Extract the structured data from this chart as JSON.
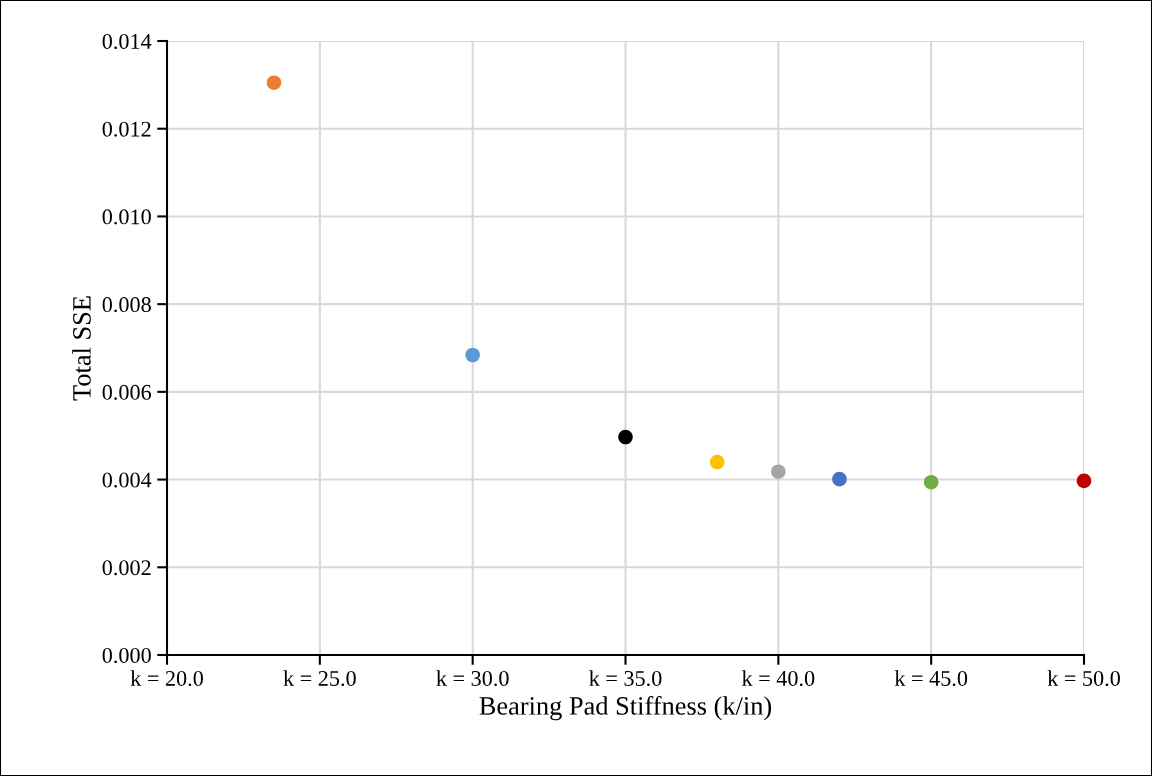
{
  "chart_data": {
    "type": "scatter",
    "xlabel": "Bearing Pad Stiffness (k/in)",
    "ylabel": "Total SSE",
    "x": [
      23.5,
      30,
      35,
      38,
      40,
      42,
      45,
      50
    ],
    "values": [
      0.01305,
      0.00684,
      0.00497,
      0.0044,
      0.00418,
      0.00401,
      0.00394,
      0.00397
    ],
    "colors": [
      "#ed7d31",
      "#5b9bd5",
      "#000000",
      "#ffc000",
      "#a5a5a5",
      "#4472c4",
      "#70ad47",
      "#c00000"
    ],
    "marker": "circle",
    "xlim": [
      20,
      50
    ],
    "xticks": [
      {
        "value": 20,
        "label": "k = 20.0"
      },
      {
        "value": 25,
        "label": "k = 25.0"
      },
      {
        "value": 30,
        "label": "k = 30.0"
      },
      {
        "value": 35,
        "label": "k = 35.0"
      },
      {
        "value": 40,
        "label": "k = 40.0"
      },
      {
        "value": 45,
        "label": "k = 45.0"
      },
      {
        "value": 50,
        "label": "k = 50.0"
      }
    ],
    "ylim": [
      0,
      0.014
    ],
    "yticks": [
      {
        "value": 0,
        "label": "0.000"
      },
      {
        "value": 0.002,
        "label": "0.002"
      },
      {
        "value": 0.004,
        "label": "0.004"
      },
      {
        "value": 0.006,
        "label": "0.006"
      },
      {
        "value": 0.008,
        "label": "0.008"
      },
      {
        "value": 0.01,
        "label": "0.010"
      },
      {
        "value": 0.012,
        "label": "0.012"
      },
      {
        "value": 0.014,
        "label": "0.014"
      }
    ],
    "grid": true
  }
}
